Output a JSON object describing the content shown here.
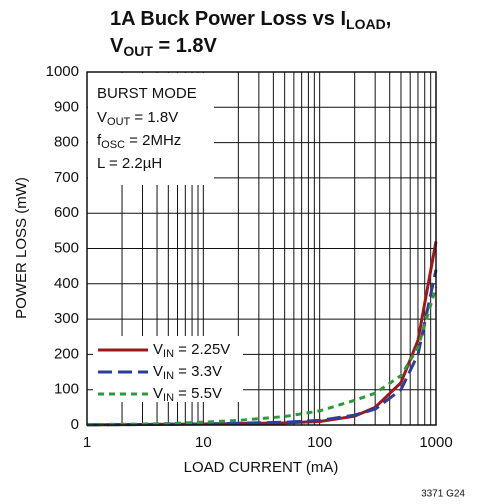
{
  "chart_data": {
    "type": "line",
    "title": [
      [
        "1A Buck Power Loss vs I",
        "LOAD",
        ","
      ],
      [
        "V",
        "OUT",
        " = 1.8V"
      ]
    ],
    "annotation": [
      [
        "BURST MODE"
      ],
      [
        "V",
        "OUT",
        " = 1.8V"
      ],
      [
        "f",
        "OSC",
        " = 2MHz"
      ],
      [
        "L = 2.2µH"
      ]
    ],
    "x_label": "LOAD CURRENT (mA)",
    "y_label": "POWER LOSS (mW)",
    "footnote": "3371 G24",
    "x": [
      1,
      2,
      5,
      10,
      20,
      50,
      100,
      200,
      300,
      500,
      700,
      1000
    ],
    "series": [
      {
        "name": [
          "V",
          "IN",
          " = 2.25V"
        ],
        "color": "#a0171c",
        "values": [
          0.5,
          1,
          2,
          3,
          4,
          6,
          10,
          25,
          50,
          120,
          240,
          520
        ]
      },
      {
        "name": [
          "V",
          "IN",
          " = 3.3V"
        ],
        "color": "#2b3f98",
        "values": [
          0.5,
          1,
          2,
          3,
          5,
          8,
          13,
          28,
          45,
          100,
          200,
          440
        ]
      },
      {
        "name": [
          "V",
          "IN",
          " = 5.5V"
        ],
        "color": "#2e9a3e",
        "values": [
          1,
          2,
          4,
          8,
          13,
          24,
          40,
          70,
          90,
          140,
          220,
          390
        ]
      }
    ],
    "xscale": "log",
    "xlim": [
      1,
      1000
    ],
    "xticks": [
      1,
      10,
      100,
      1000
    ],
    "xgrid": [
      2,
      3,
      4,
      5,
      6,
      7,
      8,
      9,
      20,
      30,
      40,
      50,
      60,
      70,
      80,
      90,
      200,
      300,
      400,
      500,
      600,
      700,
      800,
      900
    ],
    "ylim": [
      0,
      1000
    ],
    "yticks": [
      0,
      100,
      200,
      300,
      400,
      500,
      600,
      700,
      800,
      900,
      1000
    ],
    "grid": true
  }
}
